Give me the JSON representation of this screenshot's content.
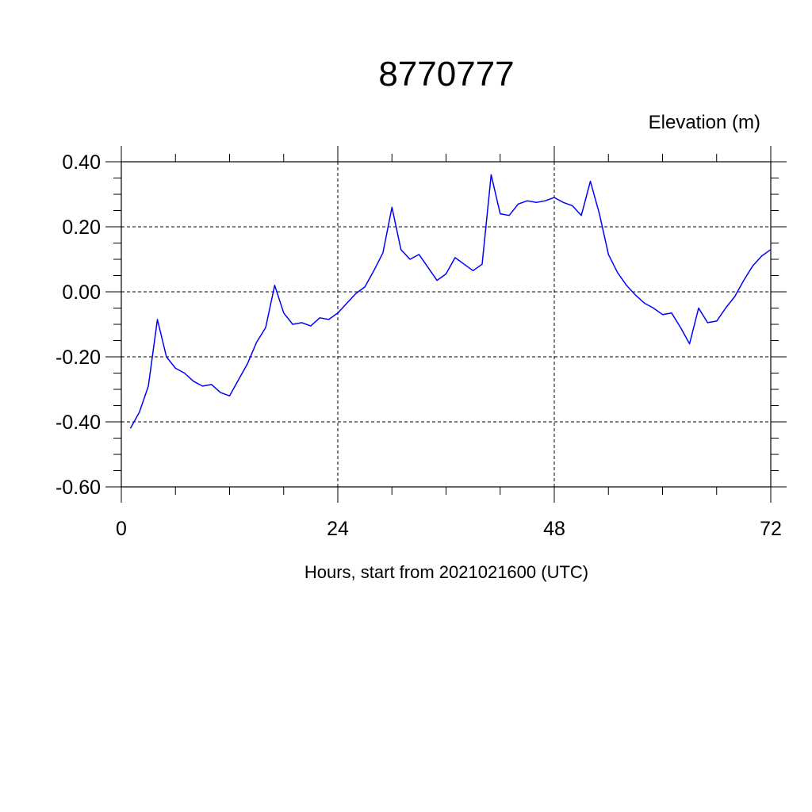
{
  "chart_data": {
    "type": "line",
    "title": "8770777",
    "ylabel": "Elevation (m)",
    "xlabel": "Hours, start from 2021021600 (UTC)",
    "xlim": [
      0,
      72
    ],
    "ylim": [
      -0.6,
      0.4
    ],
    "x_ticks": [
      0,
      24,
      48,
      72
    ],
    "x_tick_labels": [
      "0",
      "24",
      "48",
      "72"
    ],
    "y_ticks": [
      0.4,
      0.2,
      0.0,
      -0.2,
      -0.4,
      -0.6
    ],
    "y_tick_labels": [
      "0.40",
      "0.20",
      "0.00",
      "-0.20",
      "-0.40",
      "-0.60"
    ],
    "grid": true,
    "series": [
      {
        "color": "#0000ff",
        "x": [
          1,
          2,
          3,
          4,
          5,
          6,
          7,
          8,
          9,
          10,
          11,
          12,
          13,
          14,
          15,
          16,
          17,
          18,
          19,
          20,
          21,
          22,
          23,
          24,
          25,
          26,
          27,
          28,
          29,
          30,
          31,
          32,
          33,
          34,
          35,
          36,
          37,
          38,
          39,
          40,
          41,
          42,
          43,
          44,
          45,
          46,
          47,
          48,
          49,
          50,
          51,
          52,
          53,
          54,
          55,
          56,
          57,
          58,
          59,
          60,
          61,
          62,
          63,
          64,
          65,
          66,
          67,
          68,
          69,
          70,
          71,
          72
        ],
        "y": [
          -0.42,
          -0.37,
          -0.29,
          -0.085,
          -0.2,
          -0.235,
          -0.25,
          -0.275,
          -0.29,
          -0.285,
          -0.31,
          -0.32,
          -0.27,
          -0.22,
          -0.155,
          -0.11,
          0.02,
          -0.065,
          -0.1,
          -0.095,
          -0.105,
          -0.08,
          -0.085,
          -0.065,
          -0.035,
          -0.005,
          0.015,
          0.065,
          0.12,
          0.26,
          0.13,
          0.1,
          0.115,
          0.075,
          0.035,
          0.055,
          0.105,
          0.085,
          0.065,
          0.085,
          0.36,
          0.24,
          0.235,
          0.27,
          0.28,
          0.275,
          0.28,
          0.29,
          0.275,
          0.265,
          0.235,
          0.34,
          0.24,
          0.115,
          0.06,
          0.02,
          -0.01,
          -0.035,
          -0.05,
          -0.07,
          -0.065,
          -0.11,
          -0.16,
          -0.05,
          -0.095,
          -0.09,
          -0.05,
          -0.015,
          0.035,
          0.08,
          0.11,
          0.13
        ]
      }
    ]
  }
}
